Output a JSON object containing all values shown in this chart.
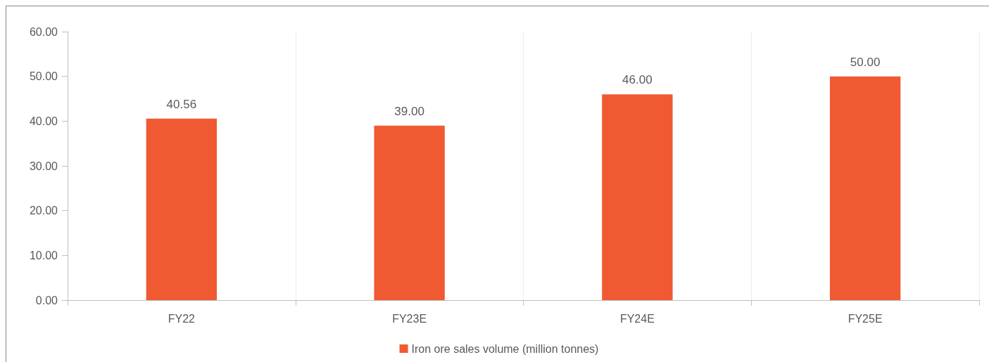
{
  "chart_data": {
    "type": "bar",
    "categories": [
      "FY22",
      "FY23E",
      "FY24E",
      "FY25E"
    ],
    "series": [
      {
        "name": "Iron ore sales volume (million tonnes)",
        "color": "#f05a33",
        "values": [
          40.56,
          39,
          46,
          50
        ],
        "value_labels": [
          "40.56",
          "39.00",
          "46.00",
          "50.00"
        ]
      }
    ],
    "ylim": [
      0,
      60
    ],
    "yticks": [
      {
        "value": 0,
        "label": "0.00"
      },
      {
        "value": 10,
        "label": "10.00"
      },
      {
        "value": 20,
        "label": "20.00"
      },
      {
        "value": 30,
        "label": "30.00"
      },
      {
        "value": 40,
        "label": "40.00"
      },
      {
        "value": 50,
        "label": "50.00"
      },
      {
        "value": 60,
        "label": "60.00"
      }
    ],
    "grid": "x",
    "legend": "bottom"
  }
}
